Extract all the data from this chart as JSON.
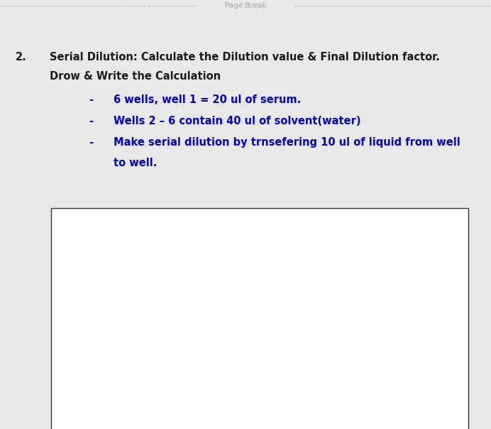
{
  "fig_width": 6.92,
  "fig_height": 6.04,
  "dpi": 100,
  "background_color": "#e8e8e8",
  "page_color": "#ffffff",
  "page_break_text": "Page Break",
  "page_break_color": "#aaaaaa",
  "page_break_text_color": "#aaaaaa",
  "number_text": "2.",
  "number_color": "#1a1a1a",
  "title_line1": "Serial Dilution: Calculate the Dilution value & Final Dilution factor.",
  "title_line2": "Drow & Write the Calculation",
  "title_color": "#1a1a1a",
  "title_fontsize": 10.5,
  "bullet_color": "#0000cc",
  "bullet_fontsize": 10.5,
  "bullet1": "6 wells, well 1 = 20 ul of serum.",
  "bullet2": "Wells 2 – 6 contain 40 ul of solvent(water)",
  "bullet3": "Make serial dilution by trnsefering 10 ul of liquid from well",
  "bullet3_cont": "to well.",
  "box_edge_color": "#333333",
  "box_face_color": "#ffffff"
}
